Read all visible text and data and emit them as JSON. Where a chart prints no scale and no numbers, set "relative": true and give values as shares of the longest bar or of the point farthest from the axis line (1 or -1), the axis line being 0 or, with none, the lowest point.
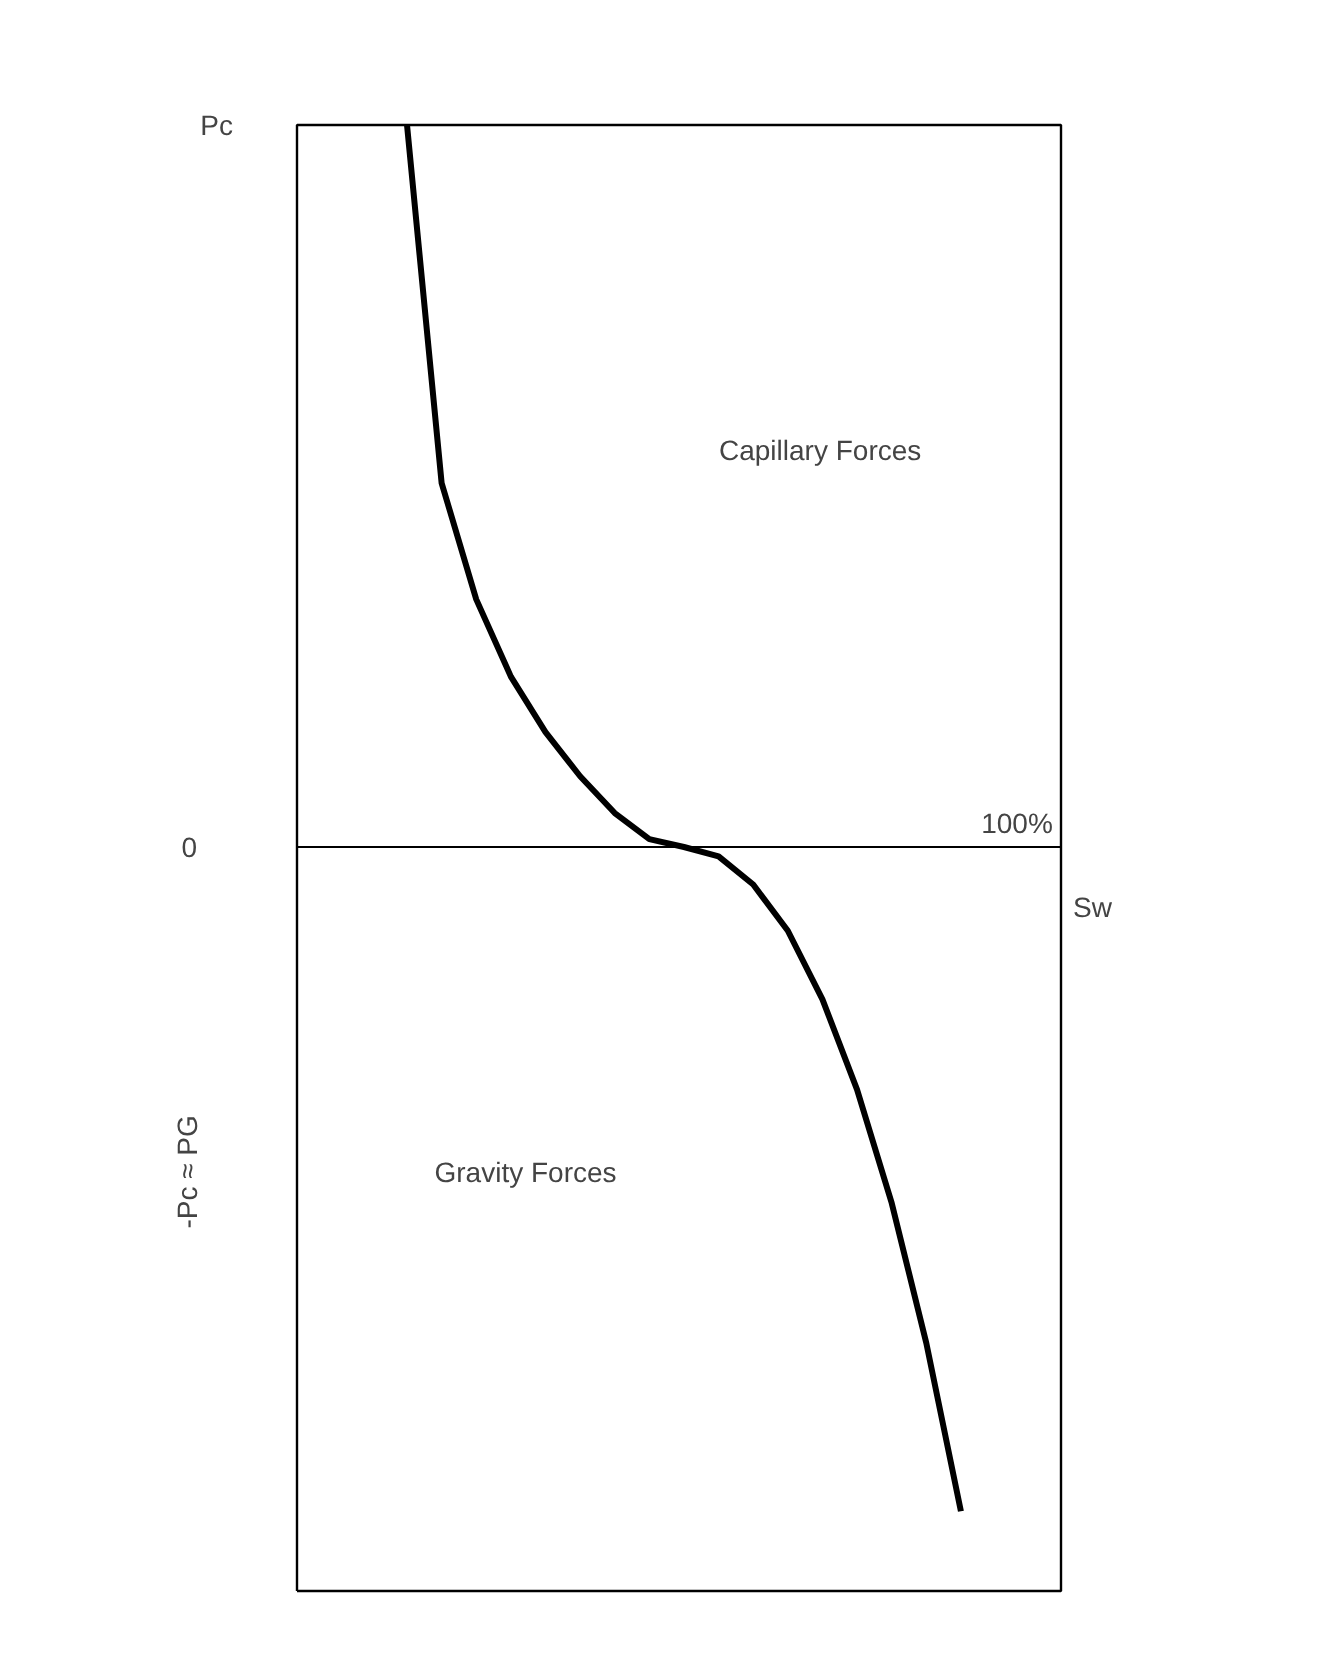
{
  "chart_data": {
    "type": "line",
    "relative": true,
    "xlabel": "Sw",
    "categories": [
      null,
      null,
      null,
      null,
      null,
      null,
      null,
      null,
      null,
      null,
      null,
      null,
      null,
      null,
      null,
      null,
      null
    ],
    "series": [
      {
        "color": "#000000",
        "values": [
          1.0,
          0.504,
          0.343,
          0.236,
          0.159,
          0.098,
          0.047,
          0.011,
          0,
          -0.013,
          -0.052,
          -0.116,
          -0.211,
          -0.336,
          -0.493,
          -0.687,
          -0.92
        ]
      }
    ],
    "annotations": [
      "Capillary Forces",
      "Gravity Forces",
      "-Pc ≈ PG",
      "100%",
      "0",
      "Pc"
    ],
    "grid": false,
    "marker": "none",
    "line_style": "solid"
  }
}
